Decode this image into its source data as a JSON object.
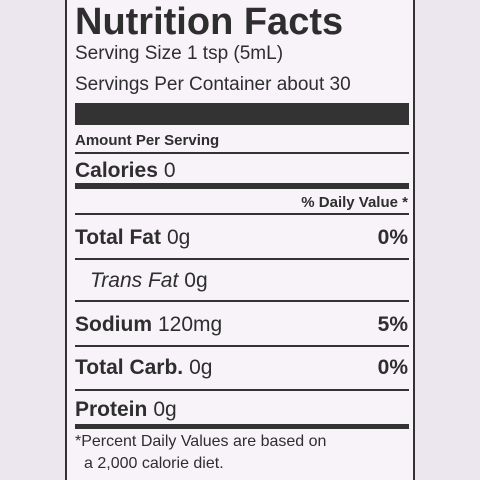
{
  "title": "Nutrition Facts",
  "serving_size": "Serving Size 1 tsp (5mL)",
  "servings_per_container": "Servings Per Container about 30",
  "amount_per_serving": "Amount Per Serving",
  "calories": {
    "label": "Calories",
    "amount": "0"
  },
  "daily_value_header": "% Daily Value *",
  "nutrients": [
    {
      "label": "Total Fat",
      "amount": "0g",
      "daily_value": "0%"
    },
    {
      "label": "Trans Fat",
      "amount": "0g"
    },
    {
      "label": "Sodium",
      "amount": "120mg",
      "daily_value": "5%"
    },
    {
      "label": "Total Carb.",
      "amount": "0g",
      "daily_value": "0%"
    },
    {
      "label": "Protein",
      "amount": "0g"
    }
  ],
  "footnote": [
    "*Percent Daily Values are based on",
    "a 2,000 calorie diet."
  ]
}
